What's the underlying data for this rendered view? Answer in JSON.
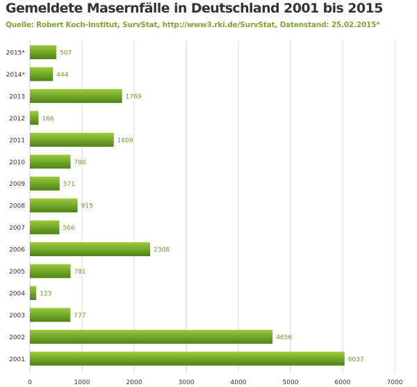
{
  "header": {
    "title": "Gemeldete Masernfälle in Deutschland 2001 bis 2015",
    "source": "Quelle: Robert Koch-Institut, SurvStat, http://www3.rki.de/SurvStat, Datenstand: 25.02.2015*"
  },
  "colors": {
    "bar_light": "#9ccb3e",
    "bar_dark": "#4e8317",
    "value_label": "#6a9a24",
    "grid": "#d5d5d5",
    "axis_text": "#333333"
  },
  "chart_data": {
    "type": "bar",
    "orientation": "horizontal",
    "title": "Gemeldete Masernfälle in Deutschland 2001 bis 2015",
    "xlabel": "",
    "ylabel": "",
    "categories": [
      "2015*",
      "2014*",
      "2013",
      "2012",
      "2011",
      "2010",
      "2009",
      "2008",
      "2007",
      "2006",
      "2005",
      "2004",
      "2003",
      "2002",
      "2001"
    ],
    "values": [
      507,
      444,
      1769,
      166,
      1609,
      780,
      571,
      915,
      566,
      2308,
      781,
      123,
      777,
      4656,
      6037
    ],
    "xlim": [
      0,
      7000
    ],
    "xticks": [
      0,
      1000,
      2000,
      3000,
      4000,
      5000,
      6000,
      7000
    ],
    "grid": true,
    "data_labels": true
  }
}
